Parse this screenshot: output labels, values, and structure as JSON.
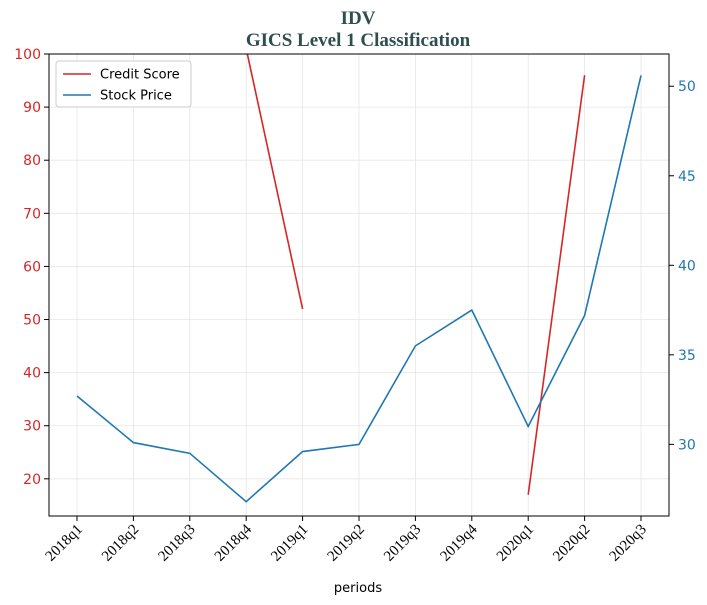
{
  "chart_data": {
    "type": "line",
    "title": "IDV",
    "subtitle": "GICS Level 1 Classification",
    "xlabel": "periods",
    "categories": [
      "2018q1",
      "2018q2",
      "2018q3",
      "2018q4",
      "2019q1",
      "2019q2",
      "2019q3",
      "2019q4",
      "2020q1",
      "2020q2",
      "2020q3"
    ],
    "left_axis": {
      "ylim": [
        13,
        100
      ],
      "ticks": [
        20,
        30,
        40,
        50,
        60,
        70,
        80,
        90,
        100
      ],
      "color": "#d62728"
    },
    "right_axis": {
      "ylim": [
        26,
        51.8
      ],
      "ticks": [
        30,
        35,
        40,
        45,
        50
      ],
      "color": "#1f77b4"
    },
    "series": [
      {
        "name": "Credit Score",
        "axis": "left",
        "color": "#d62728",
        "values": [
          null,
          null,
          null,
          101,
          52,
          null,
          null,
          null,
          17,
          96,
          null
        ]
      },
      {
        "name": "Stock Price",
        "axis": "right",
        "color": "#1f77b4",
        "values": [
          32.7,
          30.1,
          29.5,
          26.8,
          29.6,
          30.0,
          35.5,
          37.5,
          31.0,
          37.2,
          50.6
        ]
      }
    ],
    "grid": true,
    "legend_position": "upper-left"
  }
}
